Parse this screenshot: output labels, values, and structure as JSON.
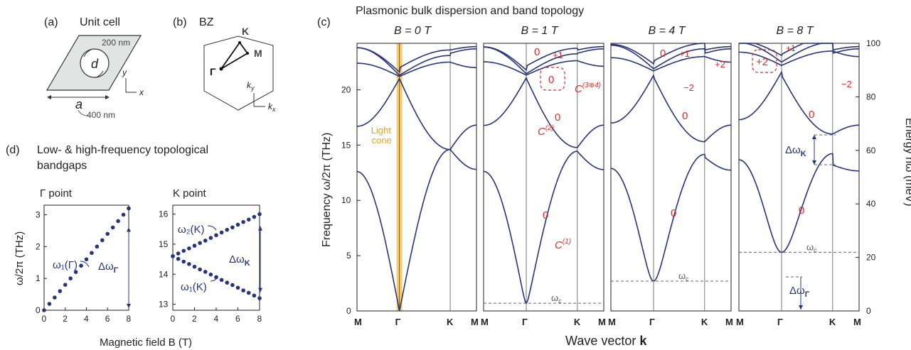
{
  "panel_a": {
    "tag": "(a)",
    "title": "Unit cell",
    "d_label": "d",
    "a_label": "a",
    "d_value": "200 nm",
    "a_value": "400 nm",
    "x_axis": "x",
    "y_axis": "y"
  },
  "panel_b": {
    "tag": "(b)",
    "title": "BZ",
    "points": [
      "K",
      "M",
      "Γ"
    ],
    "kx": "k",
    "kx_sub": "x",
    "ky": "k",
    "ky_sub": "y"
  },
  "panel_c": {
    "tag": "(c)",
    "title": "Plasmonic bulk dispersion and band topology",
    "y_left_label": "Frequency ω/2π (THz)",
    "y_right_label": "Energy ħω (meV)",
    "x_label": "Wave vector ",
    "x_label_bold": "k",
    "light_cone_1": "Light",
    "light_cone_2": "cone",
    "wc_label": "ω",
    "wc_sub": "c",
    "dwk_label": "Δω",
    "dwk_sub": "K",
    "dwg_label": "Δω",
    "dwg_sub": "Γ",
    "chern_C": "C",
    "chern_sup_1": "(1)",
    "chern_sup_2": "(2)",
    "chern_sup_34": "(3⊕4)"
  },
  "panel_d": {
    "tag": "(d)",
    "title_1": "Low- & high-frequency topological",
    "title_2": "bandgaps",
    "gamma_title": "Γ point",
    "k_title": "K point",
    "ylabel": "ω/2π (THz)",
    "xlabel": "Magnetic field B (T)",
    "w1_gamma": "ω₁(Γ)",
    "w2_k": "ω₂(K)",
    "w1_k": "ω₁(K)",
    "dw_gamma": "Δω",
    "dw_gamma_sub": "Γ",
    "dw_k": "Δω",
    "dw_k_sub": "K"
  },
  "chart_data": [
    {
      "type": "scatter",
      "name": "Gamma point",
      "x": [
        0,
        0.5,
        1,
        1.5,
        2,
        2.5,
        3,
        3.5,
        4,
        4.5,
        5,
        5.5,
        6,
        6.5,
        7,
        7.5,
        8
      ],
      "y": [
        0,
        0.2,
        0.4,
        0.6,
        0.8,
        1.0,
        1.2,
        1.4,
        1.6,
        1.8,
        2.0,
        2.2,
        2.4,
        2.6,
        2.8,
        3.0,
        3.2
      ],
      "xlim": [
        0,
        8
      ],
      "ylim": [
        0,
        3.3
      ],
      "xticks": [
        "0",
        "2",
        "4",
        "6",
        "8"
      ],
      "yticks": [
        "0",
        "1",
        "2",
        "3"
      ],
      "ylabel": "ω/2π (THz)",
      "xlabel": "Magnetic field B (T)"
    },
    {
      "type": "scatter",
      "name": "K point",
      "x": [
        0,
        0.5,
        1,
        1.5,
        2,
        2.5,
        3,
        3.5,
        4,
        4.5,
        5,
        5.5,
        6,
        6.5,
        7,
        7.5,
        8
      ],
      "series": [
        {
          "name": "ω₂(K)",
          "values": [
            14.6,
            14.69,
            14.78,
            14.86,
            14.95,
            15.04,
            15.12,
            15.21,
            15.3,
            15.39,
            15.48,
            15.56,
            15.65,
            15.74,
            15.82,
            15.91,
            16.0
          ]
        },
        {
          "name": "ω₁(K)",
          "values": [
            14.6,
            14.51,
            14.42,
            14.34,
            14.25,
            14.16,
            14.08,
            13.99,
            13.9,
            13.81,
            13.72,
            13.64,
            13.55,
            13.46,
            13.38,
            13.29,
            13.2
          ]
        }
      ],
      "xlim": [
        0,
        8
      ],
      "ylim": [
        12.8,
        16.3
      ],
      "xticks": [
        "0",
        "2",
        "4",
        "6",
        "8"
      ],
      "yticks": [
        "13",
        "14",
        "15",
        "16"
      ]
    },
    {
      "type": "line",
      "name": "Band dispersion",
      "panels": [
        "B = 0 T",
        "B = 1 T",
        "B = 4 T",
        "B = 8 T"
      ],
      "k_path": [
        "M",
        "Γ",
        "K",
        "M"
      ],
      "ylim_THz": [
        0,
        24.2
      ],
      "ylim_meV": [
        0,
        100
      ],
      "yticks_THz": [
        "0",
        "5",
        "10",
        "15",
        "20"
      ],
      "yticks_meV": [
        "0",
        "20",
        "40",
        "60",
        "80",
        "100"
      ],
      "omega_c_THz": [
        0,
        0.7,
        2.7,
        5.3
      ],
      "chern_labels": [
        {
          "panel": 1,
          "labels": [
            "0",
            "+1",
            "0",
            "0",
            "0"
          ]
        },
        {
          "panel": 2,
          "labels": [
            "0",
            "+1",
            "+2",
            "−2",
            "0",
            "0"
          ]
        },
        {
          "panel": 3,
          "labels": [
            "+2",
            "+1",
            "−2",
            "0",
            "0"
          ]
        }
      ]
    }
  ]
}
